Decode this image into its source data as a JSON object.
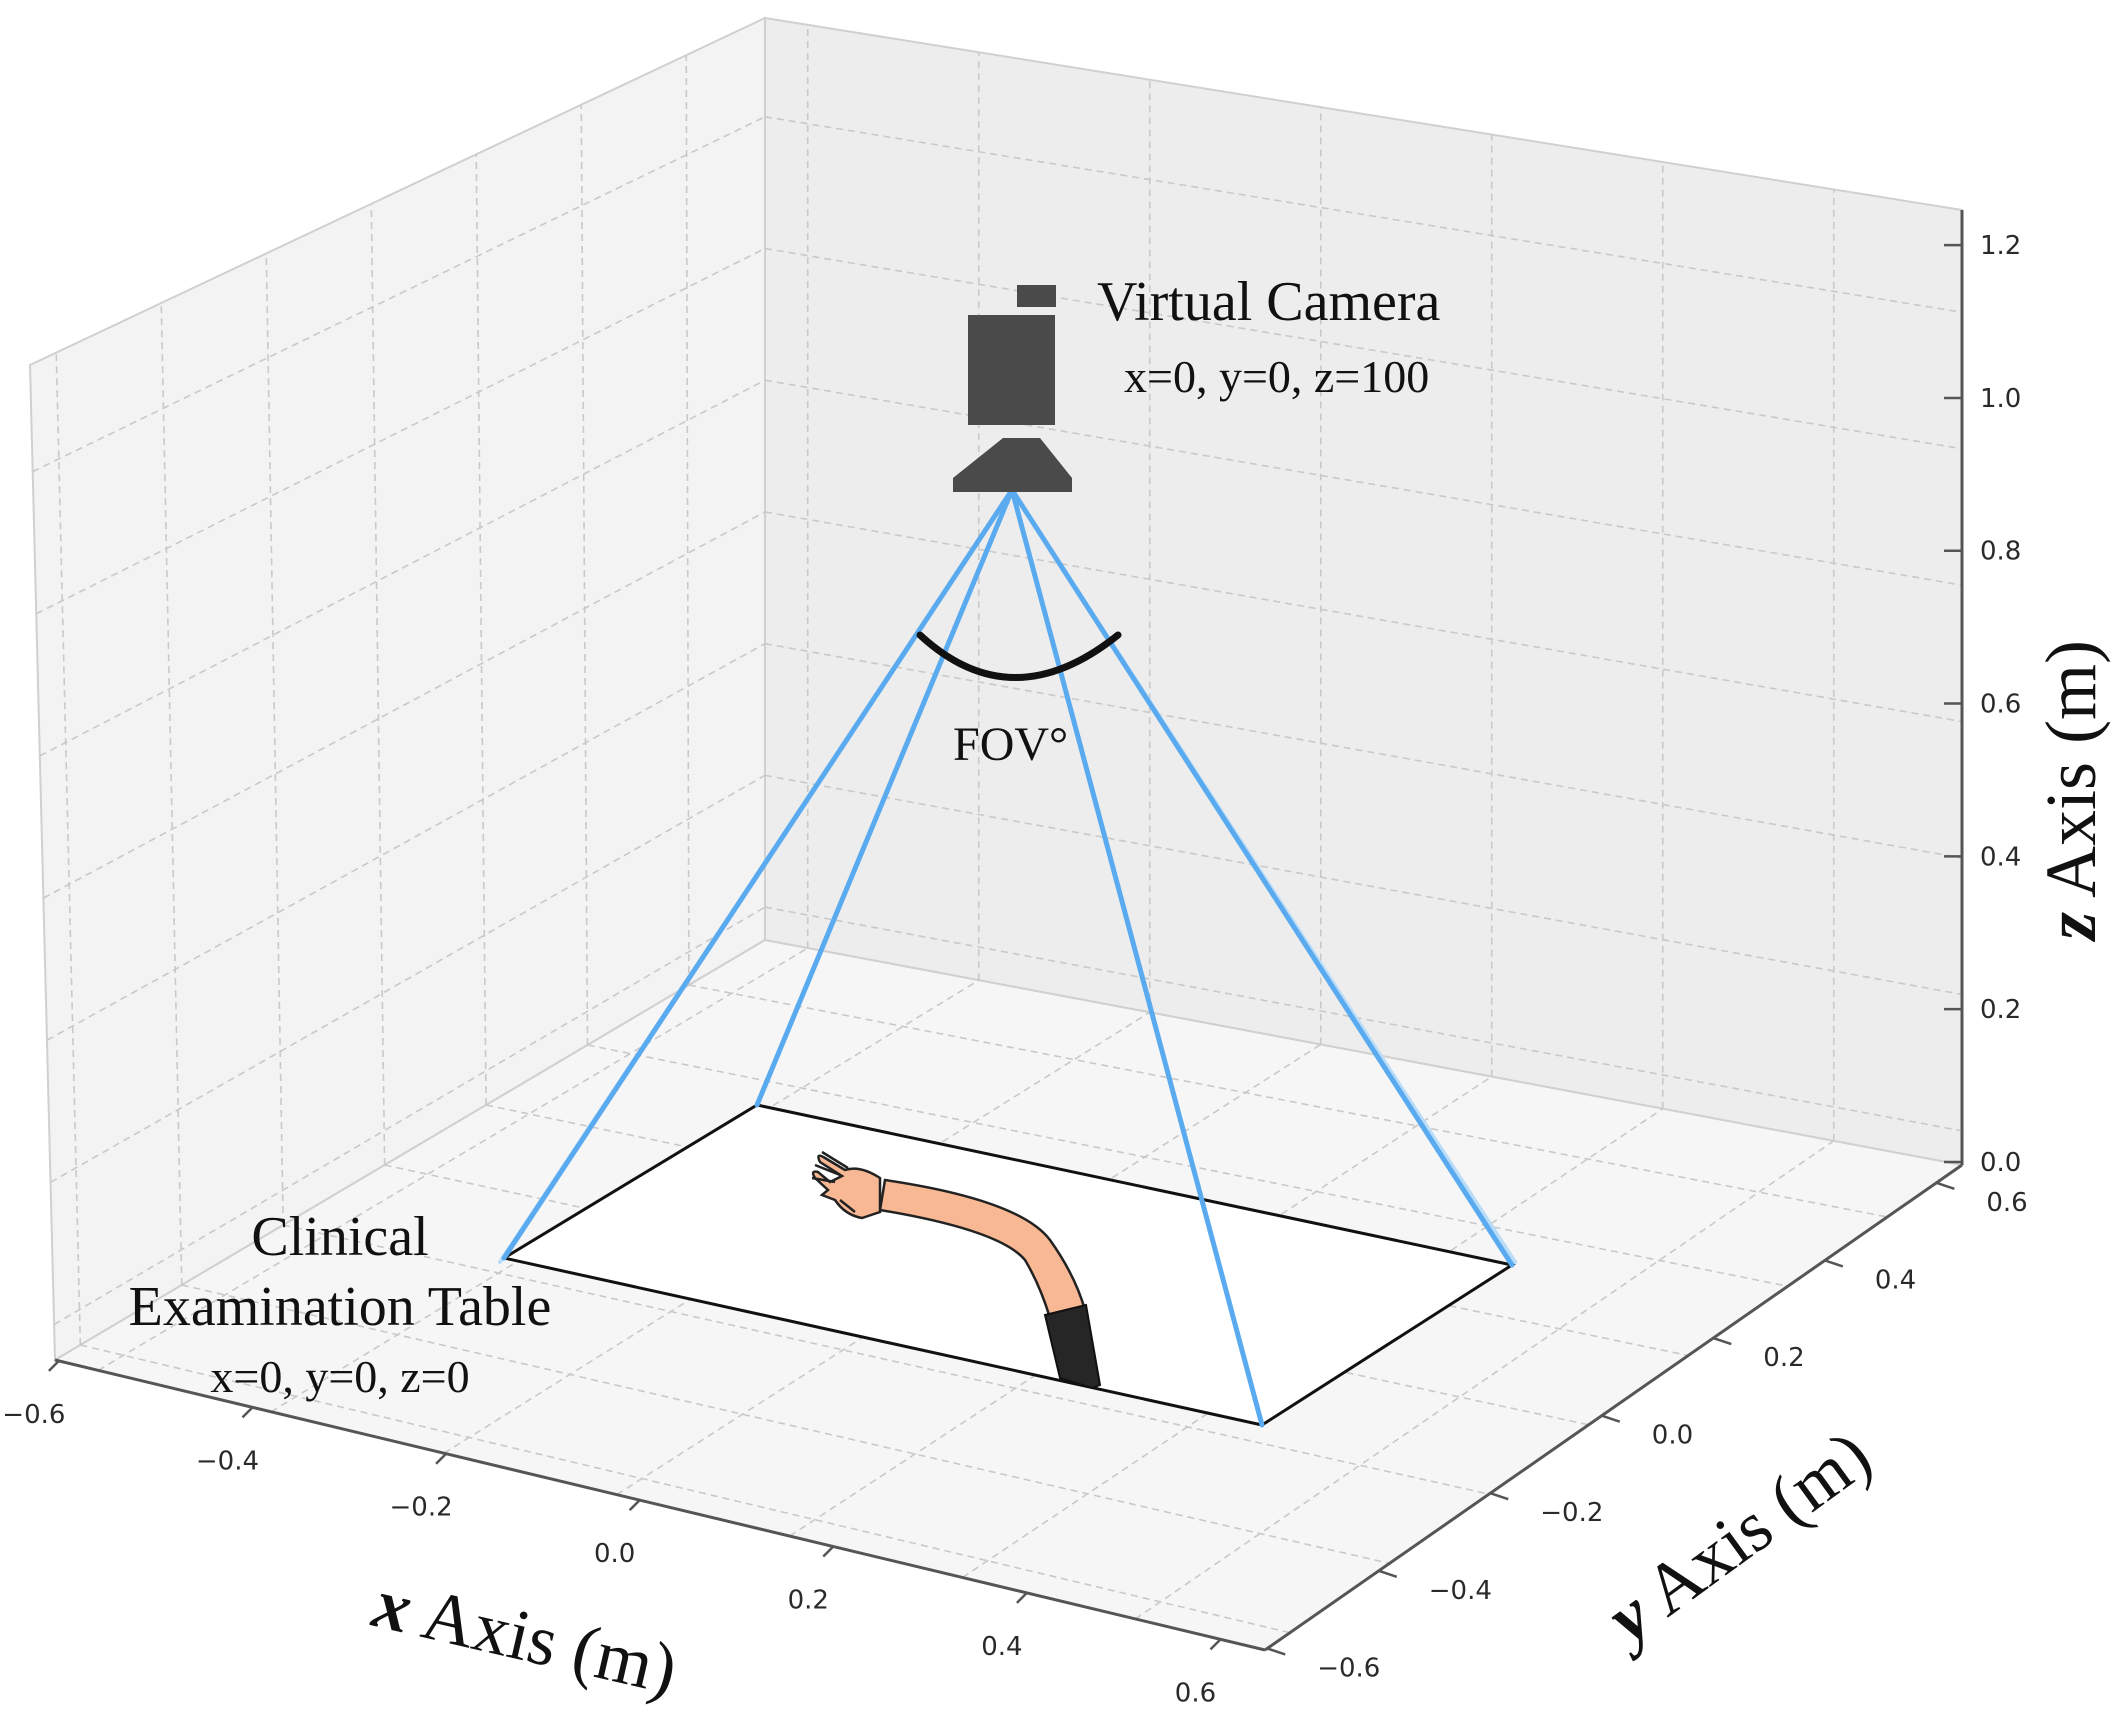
{
  "axes": {
    "x": {
      "letter": "x",
      "label": " Axis (m)",
      "ticks": [
        "−0.6",
        "−0.4",
        "−0.2",
        "0.0",
        "0.2",
        "0.4",
        "0.6"
      ]
    },
    "y": {
      "letter": "y",
      "label": " Axis (m)",
      "ticks": [
        "−0.6",
        "−0.4",
        "−0.2",
        "0.0",
        "0.2",
        "0.4",
        "0.6"
      ]
    },
    "z": {
      "letter": "z",
      "label": " Axis (m)",
      "ticks": [
        "0.0",
        "0.2",
        "0.4",
        "0.6",
        "0.8",
        "1.0",
        "1.2"
      ]
    }
  },
  "camera": {
    "title": "Virtual Camera",
    "coords": "x=0, y=0, z=100"
  },
  "table": {
    "title_line1": "Clinical",
    "title_line2": "Examination Table",
    "coords": "x=0, y=0, z=0"
  },
  "fov": {
    "label": "FOV°"
  },
  "colors": {
    "frustum": "#5aaaf0",
    "frustum_faint": "#b9dcf8",
    "pane": "#f2f2f2",
    "grid": "#c8c8c8",
    "camera": "#4a4a4a",
    "skin": "#f8b894",
    "sleeve": "#262626"
  }
}
